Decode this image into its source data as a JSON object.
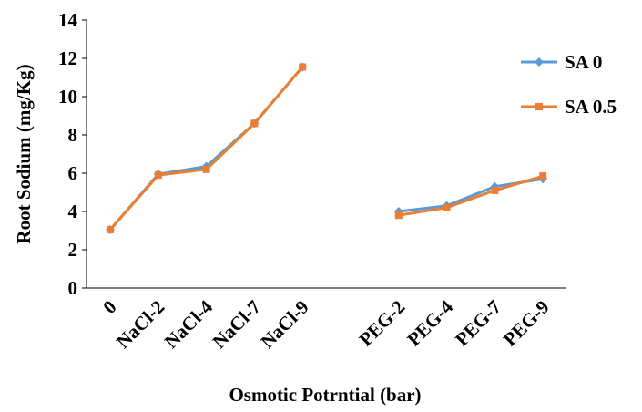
{
  "chart_data": {
    "type": "line",
    "x_label": "Osmotic Potrntial (bar)",
    "y_label": "Root Sodium (mg/Kg)",
    "categories": [
      "0",
      "NaCl-2",
      "NaCl-4",
      "NaCl-7",
      "NaCl-9",
      null,
      "PEG-2",
      "PEG-4",
      "PEG-7",
      "PEG-9"
    ],
    "series": [
      {
        "name": "SA 0",
        "color": "#5b9bd5",
        "marker": "diamond",
        "values": [
          3.05,
          5.95,
          6.35,
          8.6,
          11.55,
          null,
          4.0,
          4.3,
          5.3,
          5.7
        ]
      },
      {
        "name": "SA 0.5",
        "color": "#ed7d31",
        "marker": "square",
        "values": [
          3.05,
          5.9,
          6.2,
          8.6,
          11.55,
          null,
          3.8,
          4.2,
          5.1,
          5.85
        ]
      }
    ],
    "ylim": [
      0,
      14
    ],
    "yticks": [
      0,
      2,
      4,
      6,
      8,
      10,
      12,
      14
    ],
    "grid": false,
    "legend": "right"
  }
}
